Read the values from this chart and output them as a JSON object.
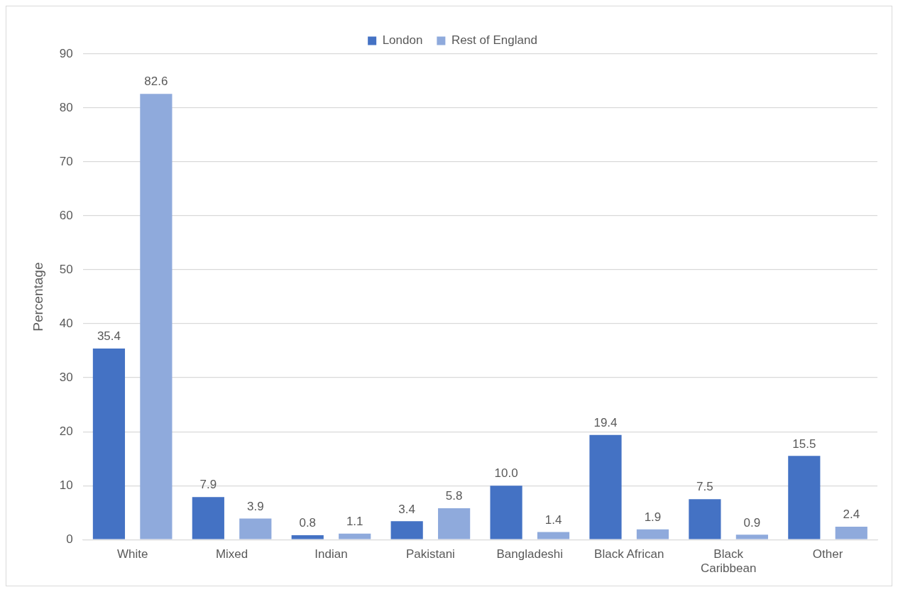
{
  "chart_data": {
    "type": "bar",
    "ylabel": "Percentage",
    "categories": [
      "White",
      "Mixed",
      "Indian",
      "Pakistani",
      "Bangladeshi",
      "Black African",
      "Black Caribbean",
      "Other"
    ],
    "series": [
      {
        "name": "London",
        "color": "#4472c4",
        "values": [
          35.4,
          7.9,
          0.8,
          3.4,
          10.0,
          19.4,
          7.5,
          15.5
        ],
        "value_labels": [
          "35.4",
          "7.9",
          "0.8",
          "3.4",
          "10.0",
          "19.4",
          "7.5",
          "15.5"
        ]
      },
      {
        "name": "Rest of England",
        "color": "#8faadc",
        "values": [
          82.6,
          3.9,
          1.1,
          5.8,
          1.4,
          1.9,
          0.9,
          2.4
        ],
        "value_labels": [
          "82.6",
          "3.9",
          "1.1",
          "5.8",
          "1.4",
          "1.9",
          "0.9",
          "2.4"
        ]
      }
    ],
    "ylim": [
      0,
      90
    ],
    "yticks": [
      0,
      10,
      20,
      30,
      40,
      50,
      60,
      70,
      80,
      90
    ],
    "grid": "y",
    "legend": "top"
  }
}
